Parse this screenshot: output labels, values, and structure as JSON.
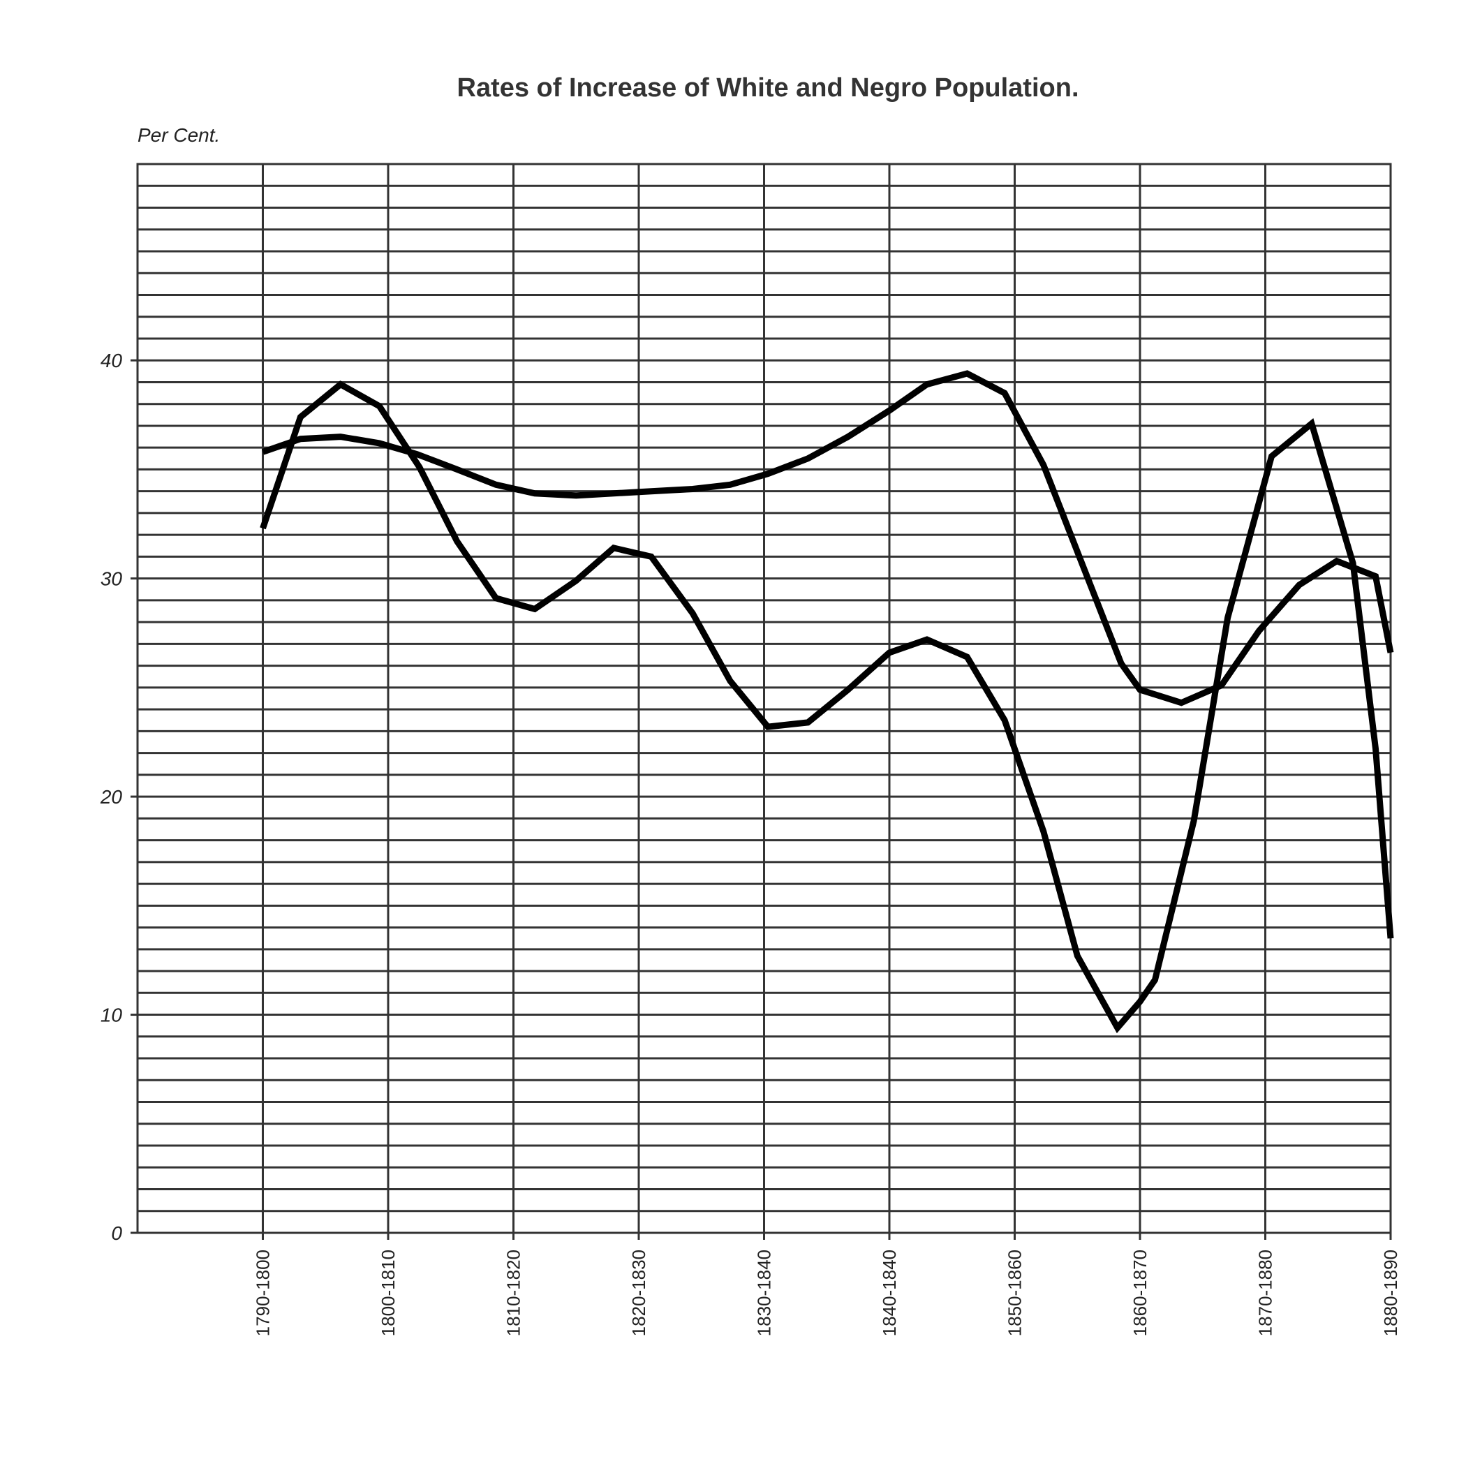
{
  "chart_data": {
    "type": "line",
    "title": "Rates of Increase of White and Negro Population.",
    "ylabel": "Per Cent.",
    "xlabel": "",
    "ylim": [
      0,
      49
    ],
    "grid": true,
    "legend": "none",
    "categories": [
      "1790-1800",
      "1800-1810",
      "1810-1820",
      "1820-1830",
      "1830-1840",
      "1840-1840",
      "1850-1860",
      "1860-1870",
      "1870-1880",
      "1880-1890"
    ],
    "y_ticks": [
      "0",
      "10",
      "20",
      "30",
      "40"
    ],
    "series": [
      {
        "color": "#000000",
        "x": [
          0,
          0.3,
          0.62,
          0.93,
          1.23,
          1.55,
          1.86,
          2.17,
          2.5,
          2.8,
          3.1,
          3.43,
          3.73,
          4.03,
          4.35,
          4.67,
          5.0,
          5.3,
          5.62,
          5.92,
          6.23,
          6.55,
          6.85,
          7.0,
          7.33,
          7.65,
          7.95,
          8.27,
          8.57,
          8.88,
          9.0
        ],
        "y": [
          35.8,
          36.4,
          36.5,
          36.2,
          35.7,
          35.0,
          34.3,
          33.9,
          33.8,
          33.9,
          34.0,
          34.1,
          34.3,
          34.8,
          35.5,
          36.5,
          37.7,
          38.9,
          39.4,
          38.5,
          35.2,
          30.5,
          26.1,
          24.9,
          24.3,
          25.1,
          27.6,
          29.7,
          30.8,
          30.1,
          26.6
        ]
      },
      {
        "color": "#000000",
        "x": [
          0,
          0.3,
          0.62,
          0.93,
          1.25,
          1.55,
          1.86,
          2.17,
          2.5,
          2.8,
          3.1,
          3.43,
          3.73,
          4.03,
          4.35,
          4.67,
          5.0,
          5.3,
          5.62,
          5.92,
          6.23,
          6.5,
          6.82,
          7.0,
          7.12,
          7.43,
          7.7,
          8.05,
          8.37,
          8.7,
          8.88,
          9.0
        ],
        "y": [
          32.3,
          37.4,
          38.9,
          37.9,
          35.1,
          31.7,
          29.1,
          28.6,
          29.9,
          31.4,
          31.0,
          28.4,
          25.3,
          23.2,
          23.4,
          24.9,
          26.6,
          27.2,
          26.4,
          23.5,
          18.4,
          12.7,
          9.4,
          10.6,
          11.6,
          18.9,
          28.2,
          35.6,
          37.1,
          30.7,
          22.2,
          13.5
        ]
      }
    ]
  }
}
